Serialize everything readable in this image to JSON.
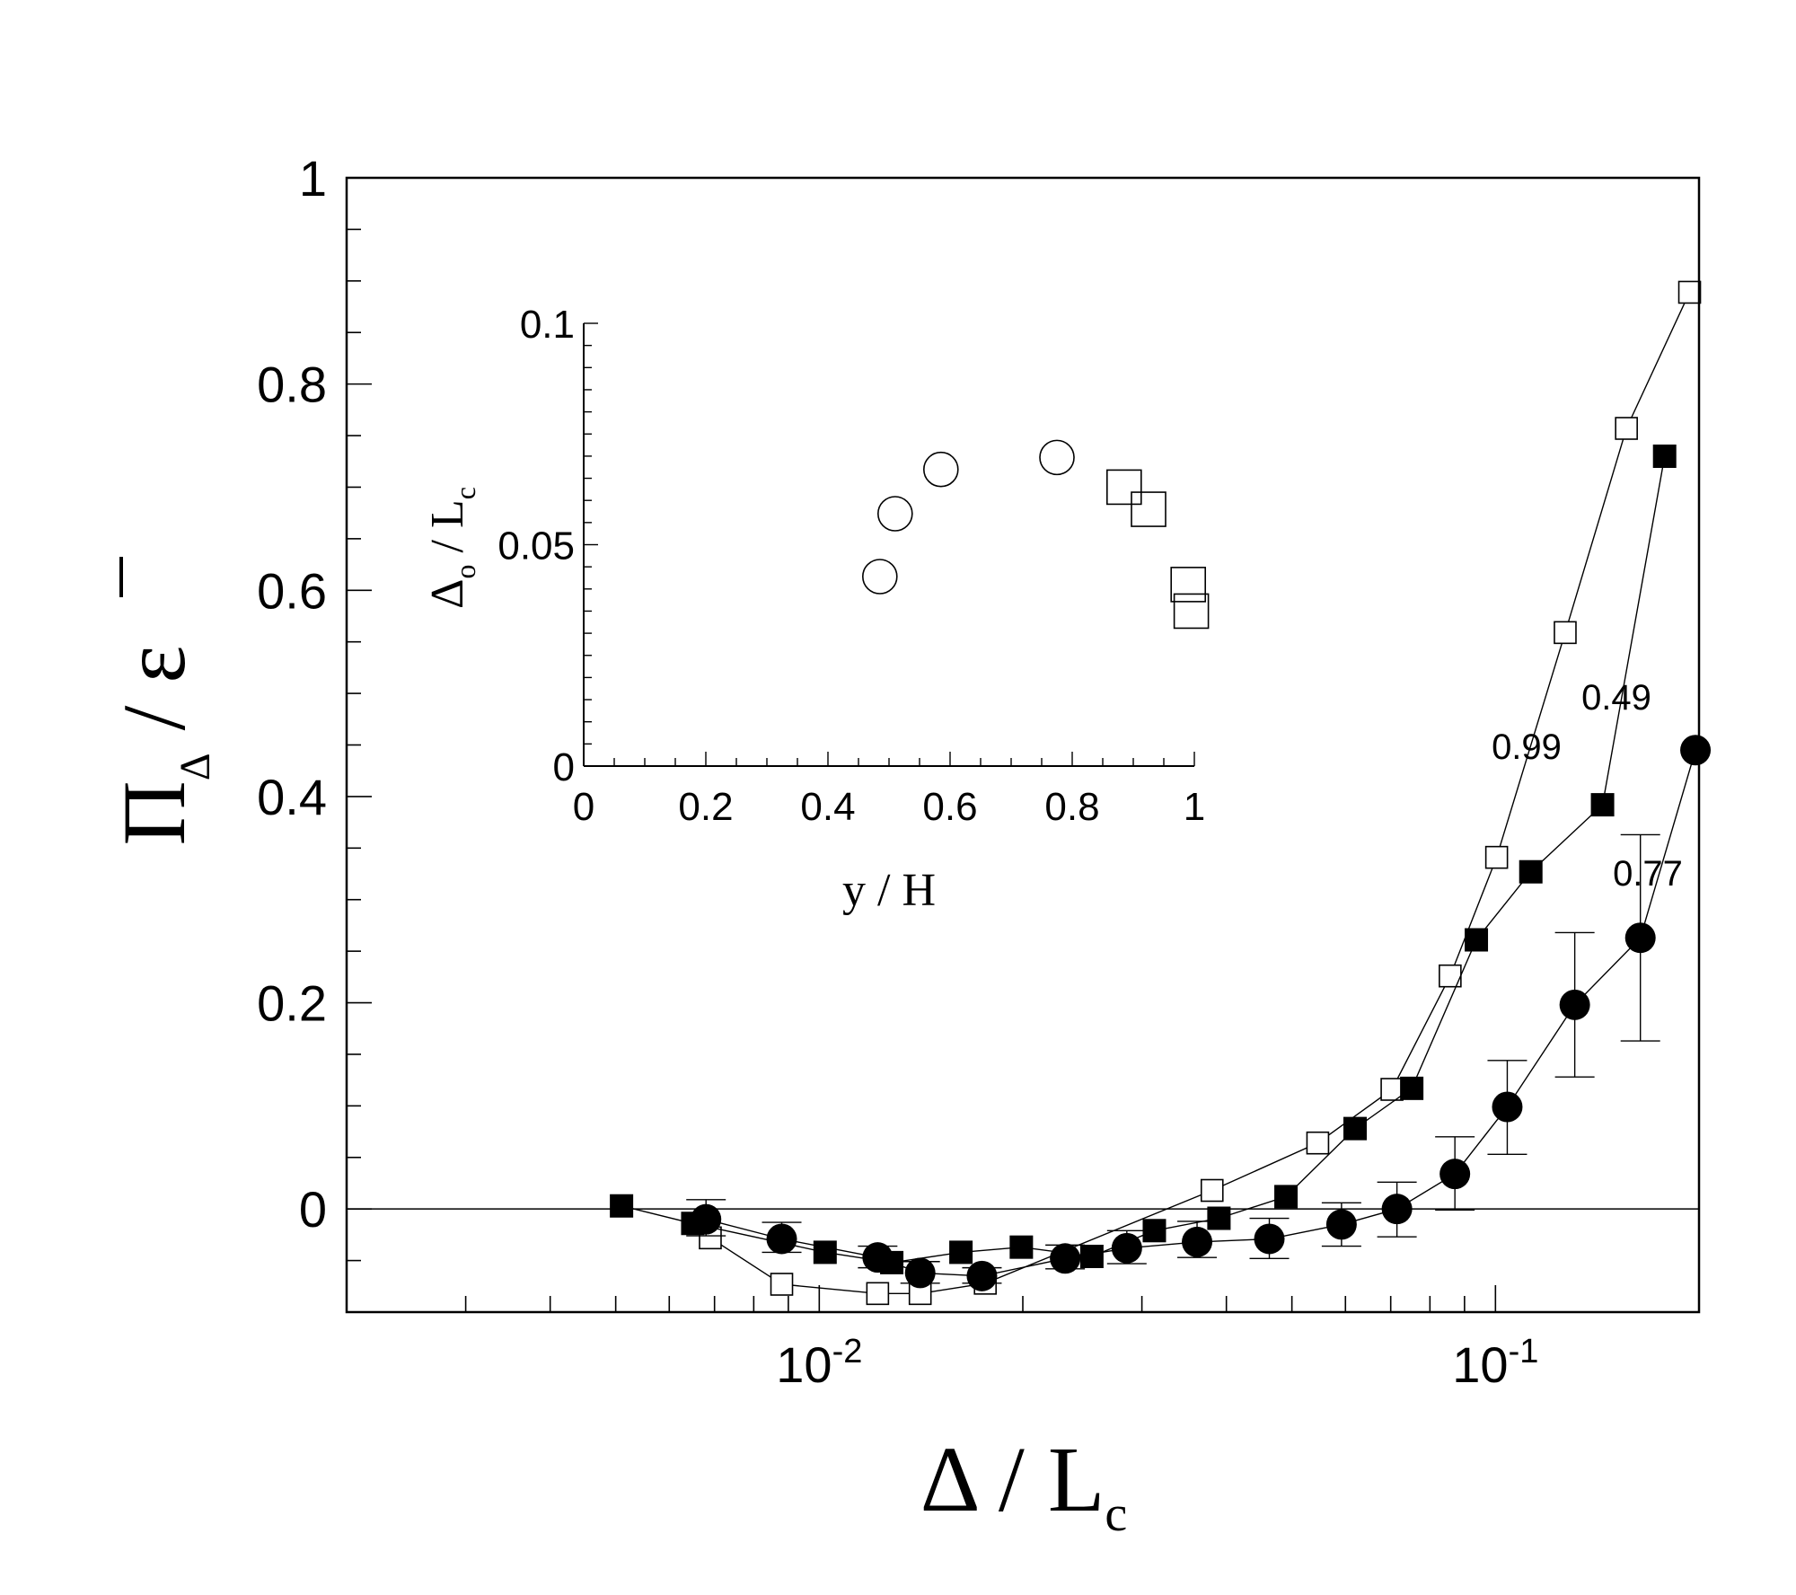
{
  "chart_data": [
    {
      "type": "line",
      "xscale": "log",
      "xlim": [
        0.002,
        0.2
      ],
      "ylim": [
        -0.1,
        1.0
      ],
      "grid": false,
      "legend": "none",
      "xlabel_parts": {
        "symbol": "Δ",
        "sep": " / ",
        "main": "L",
        "sub": "c"
      },
      "ylabel_parts": {
        "symbol": "Π",
        "sub": "Δ",
        "sep": " / ",
        "main": "ε"
      },
      "y_ticks": [
        {
          "value": 0,
          "label": "0"
        },
        {
          "value": 0.2,
          "label": "0.2"
        },
        {
          "value": 0.4,
          "label": "0.4"
        },
        {
          "value": 0.6,
          "label": "0.6"
        },
        {
          "value": 0.8,
          "label": "0.8"
        },
        {
          "value": 1.0,
          "label": "1"
        }
      ],
      "x_ticks": [
        {
          "value": 0.01,
          "base": "10",
          "exp": "-2"
        },
        {
          "value": 0.1,
          "base": "10",
          "exp": "-1"
        }
      ],
      "reference_line_y": 0,
      "series": [
        {
          "annotation": "0.99",
          "marker": "open-square",
          "x": [
            0.0069,
            0.0088,
            0.0122,
            0.0141,
            0.0176,
            0.0381,
            0.0546,
            0.0703,
            0.0857,
            0.1004,
            0.1268,
            0.1562,
            0.1937
          ],
          "y": [
            -0.028,
            -0.073,
            -0.082,
            -0.082,
            -0.072,
            0.018,
            0.064,
            0.116,
            0.226,
            0.341,
            0.559,
            0.757,
            0.889
          ]
        },
        {
          "annotation": "0.49",
          "marker": "filled-square",
          "x": [
            0.0051,
            0.0065,
            0.0102,
            0.0128,
            0.0162,
            0.0199,
            0.0253,
            0.0313,
            0.039,
            0.049,
            0.062,
            0.0752,
            0.0937,
            0.1128,
            0.144,
            0.1779
          ],
          "y": [
            0.003,
            -0.014,
            -0.042,
            -0.052,
            -0.042,
            -0.037,
            -0.046,
            -0.021,
            -0.009,
            0.012,
            0.078,
            0.117,
            0.261,
            0.327,
            0.392,
            0.73
          ]
        },
        {
          "annotation": "0.77",
          "marker": "filled-circle",
          "x": [
            0.0068,
            0.0088,
            0.0122,
            0.0141,
            0.0174,
            0.0231,
            0.0285,
            0.0362,
            0.0463,
            0.0592,
            0.0715,
            0.0871,
            0.1041,
            0.131,
            0.1638,
            0.1976
          ],
          "y": [
            -0.01,
            -0.029,
            -0.047,
            -0.062,
            -0.065,
            -0.048,
            -0.038,
            -0.032,
            -0.029,
            -0.015,
            0.0,
            0.034,
            0.099,
            0.198,
            0.263,
            0.445
          ],
          "err_low": [
            -0.01,
            -0.029,
            -0.047,
            -0.062,
            -0.065,
            -0.048,
            -0.038,
            -0.032,
            -0.029,
            -0.015,
            0.0,
            0.034,
            0.099,
            0.198,
            0.263,
            0.445
          ],
          "err_lo": [
            -0.026,
            -0.042,
            -0.057,
            -0.072,
            -0.072,
            -0.058,
            -0.053,
            -0.047,
            -0.048,
            -0.036,
            -0.027,
            -0.001,
            0.053,
            0.128,
            0.163,
            0.445
          ],
          "err_hi": [
            0.009,
            -0.013,
            -0.036,
            -0.051,
            -0.057,
            -0.035,
            -0.021,
            -0.012,
            -0.009,
            0.006,
            0.026,
            0.07,
            0.144,
            0.268,
            0.363,
            0.445
          ]
        }
      ]
    },
    {
      "type": "scatter",
      "xlim": [
        0,
        1
      ],
      "ylim": [
        0,
        0.1
      ],
      "grid": false,
      "legend": "none",
      "xlabel": "y / H",
      "ylabel_parts": {
        "symbol": "Δ",
        "sub1": "o",
        "sep": " / ",
        "main": "L",
        "sub2": "c"
      },
      "x_ticks": [
        {
          "value": 0,
          "label": "0"
        },
        {
          "value": 0.2,
          "label": "0.2"
        },
        {
          "value": 0.4,
          "label": "0.4"
        },
        {
          "value": 0.6,
          "label": "0.6"
        },
        {
          "value": 0.8,
          "label": "0.8"
        },
        {
          "value": 1.0,
          "label": "1"
        }
      ],
      "y_ticks": [
        {
          "value": 0,
          "label": "0"
        },
        {
          "value": 0.05,
          "label": "0.05"
        },
        {
          "value": 0.1,
          "label": "0.1"
        }
      ],
      "series": [
        {
          "marker": "open-circle",
          "x": [
            0.485,
            0.51,
            0.585,
            0.775
          ],
          "y": [
            0.0428,
            0.057,
            0.067,
            0.0697
          ]
        },
        {
          "marker": "open-square",
          "x": [
            0.885,
            0.925,
            0.99,
            0.995
          ],
          "y": [
            0.063,
            0.058,
            0.041,
            0.035
          ]
        }
      ]
    }
  ]
}
